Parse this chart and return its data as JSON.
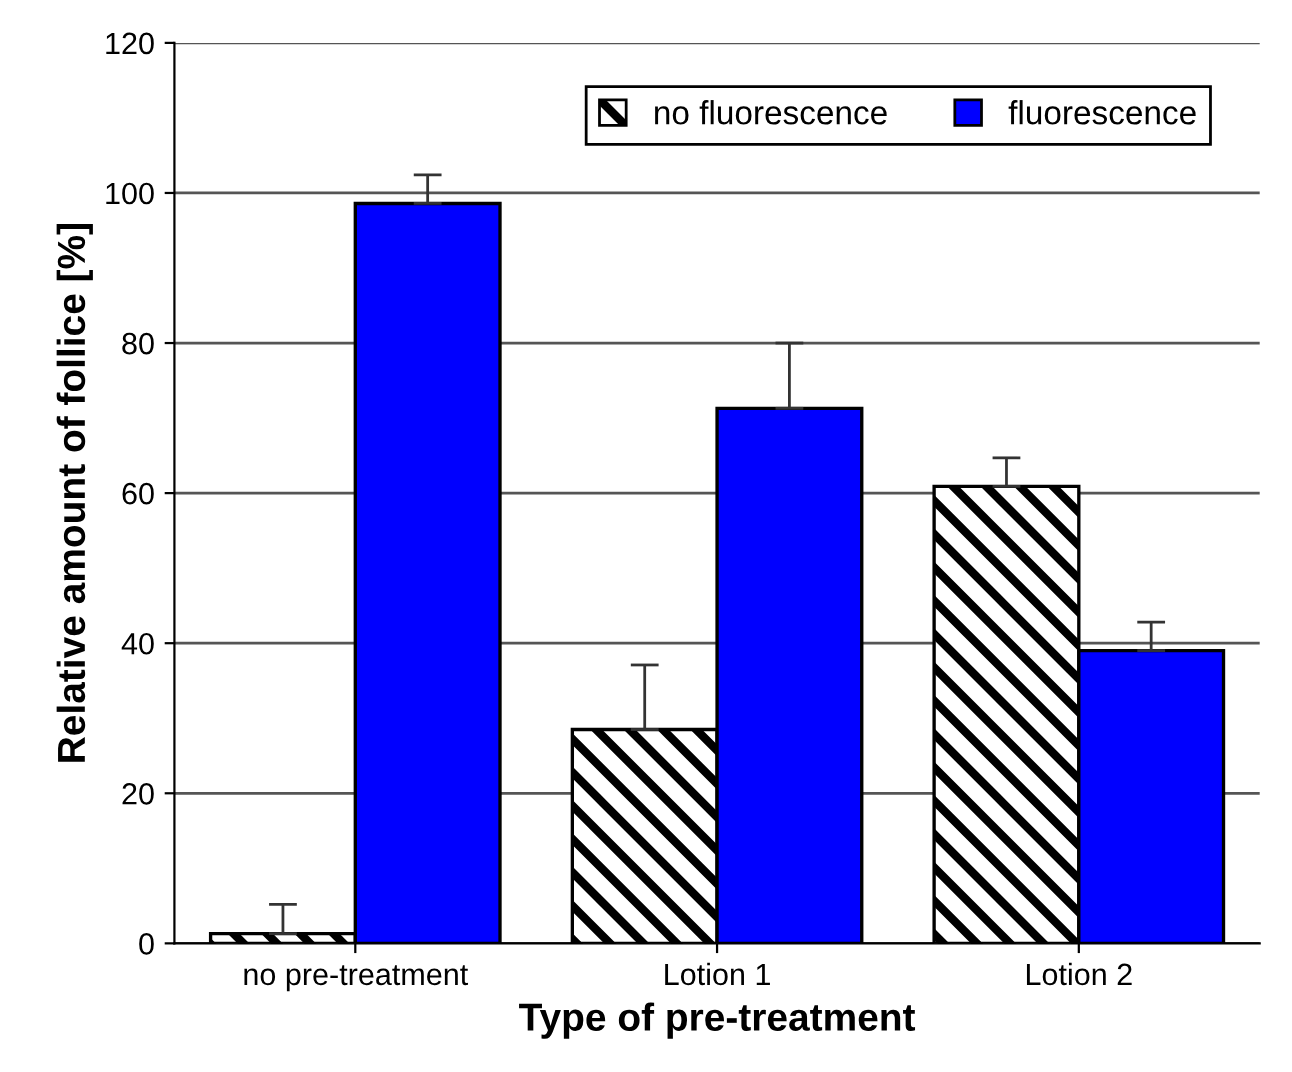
{
  "chart_data": {
    "type": "bar",
    "xlabel": "Type of pre-treatment",
    "ylabel": "Relative amount of follice [%]",
    "categories": [
      "no pre-treatment",
      "Lotion 1",
      "Lotion 2"
    ],
    "series": [
      {
        "name": "no fluorescence",
        "color": "#000000",
        "values": [
          1.3,
          28.5,
          60.9
        ],
        "errors": [
          [
            1.3,
            5.2
          ],
          [
            28.5,
            37.1
          ],
          [
            60.9,
            64.7
          ]
        ]
      },
      {
        "name": "fluorescence",
        "color": "#0000ff",
        "values": [
          98.6,
          71.3,
          39.0
        ],
        "errors": [
          [
            98.6,
            102.4
          ],
          [
            71.3,
            80.0
          ],
          [
            39.0,
            42.8
          ]
        ]
      }
    ],
    "ylim": [
      0,
      120
    ],
    "yticks": [
      0,
      20,
      40,
      60,
      80,
      100,
      120
    ],
    "grid": "y",
    "legend": "top right"
  }
}
